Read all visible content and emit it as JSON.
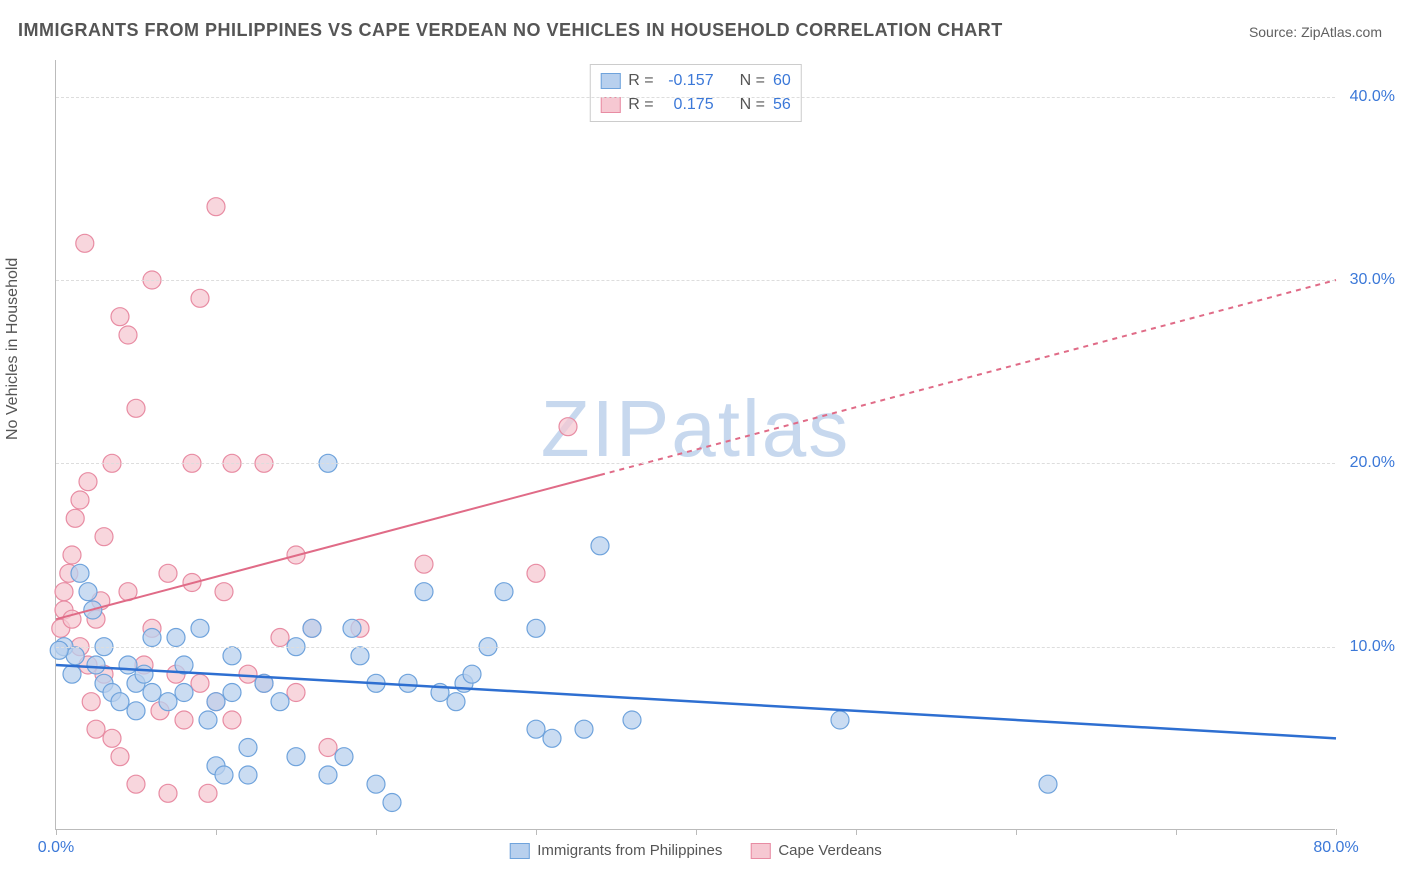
{
  "title": "IMMIGRANTS FROM PHILIPPINES VS CAPE VERDEAN NO VEHICLES IN HOUSEHOLD CORRELATION CHART",
  "source": "Source: ZipAtlas.com",
  "ylabel": "No Vehicles in Household",
  "watermark_a": "ZIP",
  "watermark_b": "atlas",
  "chart": {
    "type": "scatter",
    "xlim": [
      0,
      80
    ],
    "ylim": [
      0,
      42
    ],
    "xtick_positions": [
      0,
      10,
      20,
      30,
      40,
      50,
      60,
      70,
      80
    ],
    "xtick_labels": {
      "0": "0.0%",
      "80": "80.0%"
    },
    "ytick_positions": [
      10,
      20,
      30,
      40
    ],
    "ytick_labels": {
      "10": "10.0%",
      "20": "20.0%",
      "30": "30.0%",
      "40": "40.0%"
    },
    "background_color": "#ffffff",
    "grid_color": "#dddddd",
    "axis_color": "#bbbbbb",
    "tick_label_color": "#3b78d8"
  },
  "series": [
    {
      "name": "Immigrants from Philippines",
      "marker_fill": "#b8d0ee",
      "marker_stroke": "#6fa3dc",
      "marker_opacity": 0.75,
      "marker_radius": 9,
      "line_color": "#2e6fd1",
      "line_width": 2.5,
      "line_dash": "none",
      "R": -0.157,
      "N": 60,
      "trend": {
        "x1": 0,
        "y1": 9.0,
        "x2": 80,
        "y2": 5.0
      },
      "points": [
        [
          0.5,
          10.0
        ],
        [
          1.0,
          8.5
        ],
        [
          1.2,
          9.5
        ],
        [
          1.5,
          14.0
        ],
        [
          2.0,
          13.0
        ],
        [
          2.3,
          12.0
        ],
        [
          2.5,
          9.0
        ],
        [
          3.0,
          8.0
        ],
        [
          3.0,
          10.0
        ],
        [
          3.5,
          7.5
        ],
        [
          4.0,
          7.0
        ],
        [
          4.5,
          9.0
        ],
        [
          5.0,
          6.5
        ],
        [
          5.0,
          8.0
        ],
        [
          5.5,
          8.5
        ],
        [
          6.0,
          7.5
        ],
        [
          6.0,
          10.5
        ],
        [
          7.0,
          7.0
        ],
        [
          7.5,
          10.5
        ],
        [
          8.0,
          7.5
        ],
        [
          8.0,
          9.0
        ],
        [
          9.0,
          11.0
        ],
        [
          9.5,
          6.0
        ],
        [
          10.0,
          7.0
        ],
        [
          10.0,
          3.5
        ],
        [
          10.5,
          3.0
        ],
        [
          11.0,
          7.5
        ],
        [
          11.0,
          9.5
        ],
        [
          12.0,
          4.5
        ],
        [
          12.0,
          3.0
        ],
        [
          13.0,
          8.0
        ],
        [
          14.0,
          7.0
        ],
        [
          15.0,
          4.0
        ],
        [
          15.0,
          10.0
        ],
        [
          16.0,
          11.0
        ],
        [
          17.0,
          3.0
        ],
        [
          17.0,
          20.0
        ],
        [
          18.0,
          4.0
        ],
        [
          18.5,
          11.0
        ],
        [
          19.0,
          9.5
        ],
        [
          20.0,
          8.0
        ],
        [
          20.0,
          2.5
        ],
        [
          21.0,
          1.5
        ],
        [
          22.0,
          8.0
        ],
        [
          23.0,
          13.0
        ],
        [
          24.0,
          7.5
        ],
        [
          25.0,
          7.0
        ],
        [
          25.5,
          8.0
        ],
        [
          26.0,
          8.5
        ],
        [
          27.0,
          10.0
        ],
        [
          28.0,
          13.0
        ],
        [
          30.0,
          5.5
        ],
        [
          30.0,
          11.0
        ],
        [
          31.0,
          5.0
        ],
        [
          33.0,
          5.5
        ],
        [
          34.0,
          15.5
        ],
        [
          36.0,
          6.0
        ],
        [
          49.0,
          6.0
        ],
        [
          62.0,
          2.5
        ],
        [
          0.2,
          9.8
        ]
      ]
    },
    {
      "name": "Cape Verdeans",
      "marker_fill": "#f6c8d2",
      "marker_stroke": "#e88ca3",
      "marker_opacity": 0.75,
      "marker_radius": 9,
      "line_color": "#e06b87",
      "line_width": 2,
      "line_dash": "none",
      "line_dash_ext": "5,5",
      "R": 0.175,
      "N": 56,
      "trend": {
        "x1": 0,
        "y1": 11.5,
        "x2": 80,
        "y2": 30.0
      },
      "trend_solid_to_x": 34,
      "points": [
        [
          0.3,
          11.0
        ],
        [
          0.5,
          12.0
        ],
        [
          0.5,
          13.0
        ],
        [
          0.8,
          14.0
        ],
        [
          1.0,
          15.0
        ],
        [
          1.0,
          11.5
        ],
        [
          1.2,
          17.0
        ],
        [
          1.5,
          10.0
        ],
        [
          1.5,
          18.0
        ],
        [
          1.8,
          32.0
        ],
        [
          2.0,
          9.0
        ],
        [
          2.0,
          19.0
        ],
        [
          2.2,
          7.0
        ],
        [
          2.5,
          5.5
        ],
        [
          2.5,
          11.5
        ],
        [
          2.8,
          12.5
        ],
        [
          3.0,
          8.5
        ],
        [
          3.0,
          16.0
        ],
        [
          3.5,
          5.0
        ],
        [
          3.5,
          20.0
        ],
        [
          4.0,
          28.0
        ],
        [
          4.0,
          4.0
        ],
        [
          4.5,
          13.0
        ],
        [
          4.5,
          27.0
        ],
        [
          5.0,
          23.0
        ],
        [
          5.0,
          2.5
        ],
        [
          5.5,
          9.0
        ],
        [
          6.0,
          11.0
        ],
        [
          6.0,
          30.0
        ],
        [
          6.5,
          6.5
        ],
        [
          7.0,
          2.0
        ],
        [
          7.0,
          14.0
        ],
        [
          7.5,
          8.5
        ],
        [
          8.0,
          6.0
        ],
        [
          8.5,
          13.5
        ],
        [
          8.5,
          20.0
        ],
        [
          9.0,
          8.0
        ],
        [
          9.0,
          29.0
        ],
        [
          9.5,
          2.0
        ],
        [
          10.0,
          7.0
        ],
        [
          10.0,
          34.0
        ],
        [
          10.5,
          13.0
        ],
        [
          11.0,
          20.0
        ],
        [
          11.0,
          6.0
        ],
        [
          12.0,
          8.5
        ],
        [
          13.0,
          8.0
        ],
        [
          13.0,
          20.0
        ],
        [
          14.0,
          10.5
        ],
        [
          15.0,
          7.5
        ],
        [
          15.0,
          15.0
        ],
        [
          16.0,
          11.0
        ],
        [
          17.0,
          4.5
        ],
        [
          19.0,
          11.0
        ],
        [
          23.0,
          14.5
        ],
        [
          30.0,
          14.0
        ],
        [
          32.0,
          22.0
        ]
      ]
    }
  ],
  "legend_top": {
    "rows": [
      {
        "swatch_fill": "#b8d0ee",
        "swatch_stroke": "#6fa3dc",
        "r_label": "R =",
        "r_val": "-0.157",
        "n_label": "N =",
        "n_val": "60"
      },
      {
        "swatch_fill": "#f6c8d2",
        "swatch_stroke": "#e88ca3",
        "r_label": "R =",
        "r_val": "0.175",
        "n_label": "N =",
        "n_val": "56"
      }
    ]
  },
  "legend_bottom": {
    "items": [
      {
        "swatch_fill": "#b8d0ee",
        "swatch_stroke": "#6fa3dc",
        "label": "Immigrants from Philippines"
      },
      {
        "swatch_fill": "#f6c8d2",
        "swatch_stroke": "#e88ca3",
        "label": "Cape Verdeans"
      }
    ]
  }
}
